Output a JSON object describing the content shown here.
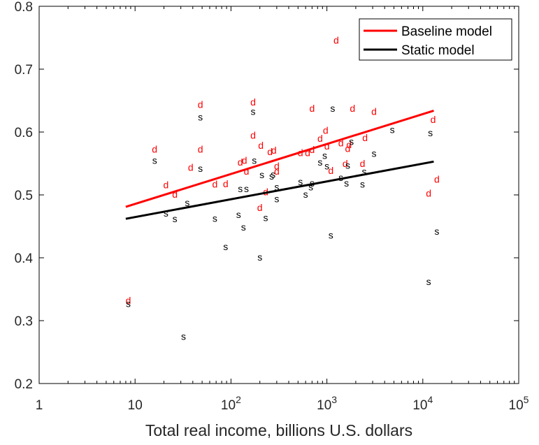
{
  "chart_data": {
    "type": "scatter",
    "title": "",
    "xlabel": "Total real income, billions U.S. dollars",
    "ylabel": "",
    "xscale": "log",
    "xlim": [
      1,
      100000
    ],
    "ylim": [
      0.2,
      0.8
    ],
    "x_tick_labels": [
      {
        "value": 1,
        "base": "1",
        "exp": ""
      },
      {
        "value": 10,
        "base": "10",
        "exp": ""
      },
      {
        "value": 100,
        "base": "10",
        "exp": "2"
      },
      {
        "value": 1000,
        "base": "10",
        "exp": "3"
      },
      {
        "value": 10000,
        "base": "10",
        "exp": "4"
      },
      {
        "value": 100000,
        "base": "10",
        "exp": "5"
      }
    ],
    "y_ticks": [
      0.2,
      0.3,
      0.4,
      0.5,
      0.6,
      0.7,
      0.8
    ],
    "y_tick_labels": [
      "0.2",
      "0.3",
      "0.4",
      "0.5",
      "0.6",
      "0.7",
      "0.8"
    ],
    "grid": false,
    "legend_position": "top-right",
    "series": [
      {
        "name": "Baseline model",
        "kind": "fit-line",
        "color": "#ff0000",
        "x": [
          8,
          13000
        ],
        "y": [
          0.481,
          0.634
        ]
      },
      {
        "name": "Static model",
        "kind": "fit-line",
        "color": "#000000",
        "x": [
          8,
          13000
        ],
        "y": [
          0.462,
          0.553
        ]
      },
      {
        "name": "",
        "kind": "markers",
        "marker_text": "d",
        "color": "#ff0000",
        "points": [
          [
            8.5,
            0.332
          ],
          [
            16,
            0.573
          ],
          [
            21,
            0.516
          ],
          [
            26,
            0.501
          ],
          [
            38,
            0.544
          ],
          [
            48,
            0.644
          ],
          [
            48,
            0.573
          ],
          [
            68,
            0.517
          ],
          [
            88,
            0.518
          ],
          [
            125,
            0.552
          ],
          [
            138,
            0.555
          ],
          [
            145,
            0.538
          ],
          [
            170,
            0.648
          ],
          [
            170,
            0.595
          ],
          [
            200,
            0.48
          ],
          [
            205,
            0.579
          ],
          [
            230,
            0.505
          ],
          [
            255,
            0.569
          ],
          [
            280,
            0.571
          ],
          [
            300,
            0.538
          ],
          [
            300,
            0.546
          ],
          [
            530,
            0.567
          ],
          [
            630,
            0.567
          ],
          [
            700,
            0.572
          ],
          [
            700,
            0.638
          ],
          [
            850,
            0.59
          ],
          [
            970,
            0.603
          ],
          [
            1000,
            0.578
          ],
          [
            1100,
            0.539
          ],
          [
            1250,
            0.746
          ],
          [
            1400,
            0.583
          ],
          [
            1550,
            0.55
          ],
          [
            1650,
            0.574
          ],
          [
            1700,
            0.58
          ],
          [
            1850,
            0.638
          ],
          [
            2350,
            0.55
          ],
          [
            2500,
            0.591
          ],
          [
            3100,
            0.633
          ],
          [
            11500,
            0.503
          ],
          [
            12800,
            0.62
          ],
          [
            14000,
            0.525
          ]
        ]
      },
      {
        "name": "",
        "kind": "markers",
        "marker_text": "s",
        "color": "#000000",
        "points": [
          [
            8.5,
            0.327
          ],
          [
            16,
            0.555
          ],
          [
            21,
            0.471
          ],
          [
            26,
            0.462
          ],
          [
            32,
            0.275
          ],
          [
            35,
            0.488
          ],
          [
            48,
            0.624
          ],
          [
            48,
            0.542
          ],
          [
            68,
            0.463
          ],
          [
            88,
            0.418
          ],
          [
            120,
            0.469
          ],
          [
            125,
            0.51
          ],
          [
            135,
            0.449
          ],
          [
            145,
            0.51
          ],
          [
            170,
            0.633
          ],
          [
            175,
            0.555
          ],
          [
            200,
            0.401
          ],
          [
            210,
            0.532
          ],
          [
            230,
            0.464
          ],
          [
            265,
            0.53
          ],
          [
            275,
            0.533
          ],
          [
            300,
            0.494
          ],
          [
            300,
            0.513
          ],
          [
            530,
            0.521
          ],
          [
            600,
            0.501
          ],
          [
            680,
            0.513
          ],
          [
            700,
            0.519
          ],
          [
            850,
            0.552
          ],
          [
            950,
            0.563
          ],
          [
            1000,
            0.546
          ],
          [
            1100,
            0.436
          ],
          [
            1150,
            0.638
          ],
          [
            1400,
            0.528
          ],
          [
            1600,
            0.519
          ],
          [
            1650,
            0.547
          ],
          [
            1800,
            0.585
          ],
          [
            2350,
            0.517
          ],
          [
            2450,
            0.537
          ],
          [
            3100,
            0.566
          ],
          [
            4800,
            0.604
          ],
          [
            11500,
            0.362
          ],
          [
            12000,
            0.599
          ],
          [
            14000,
            0.442
          ]
        ]
      }
    ]
  }
}
